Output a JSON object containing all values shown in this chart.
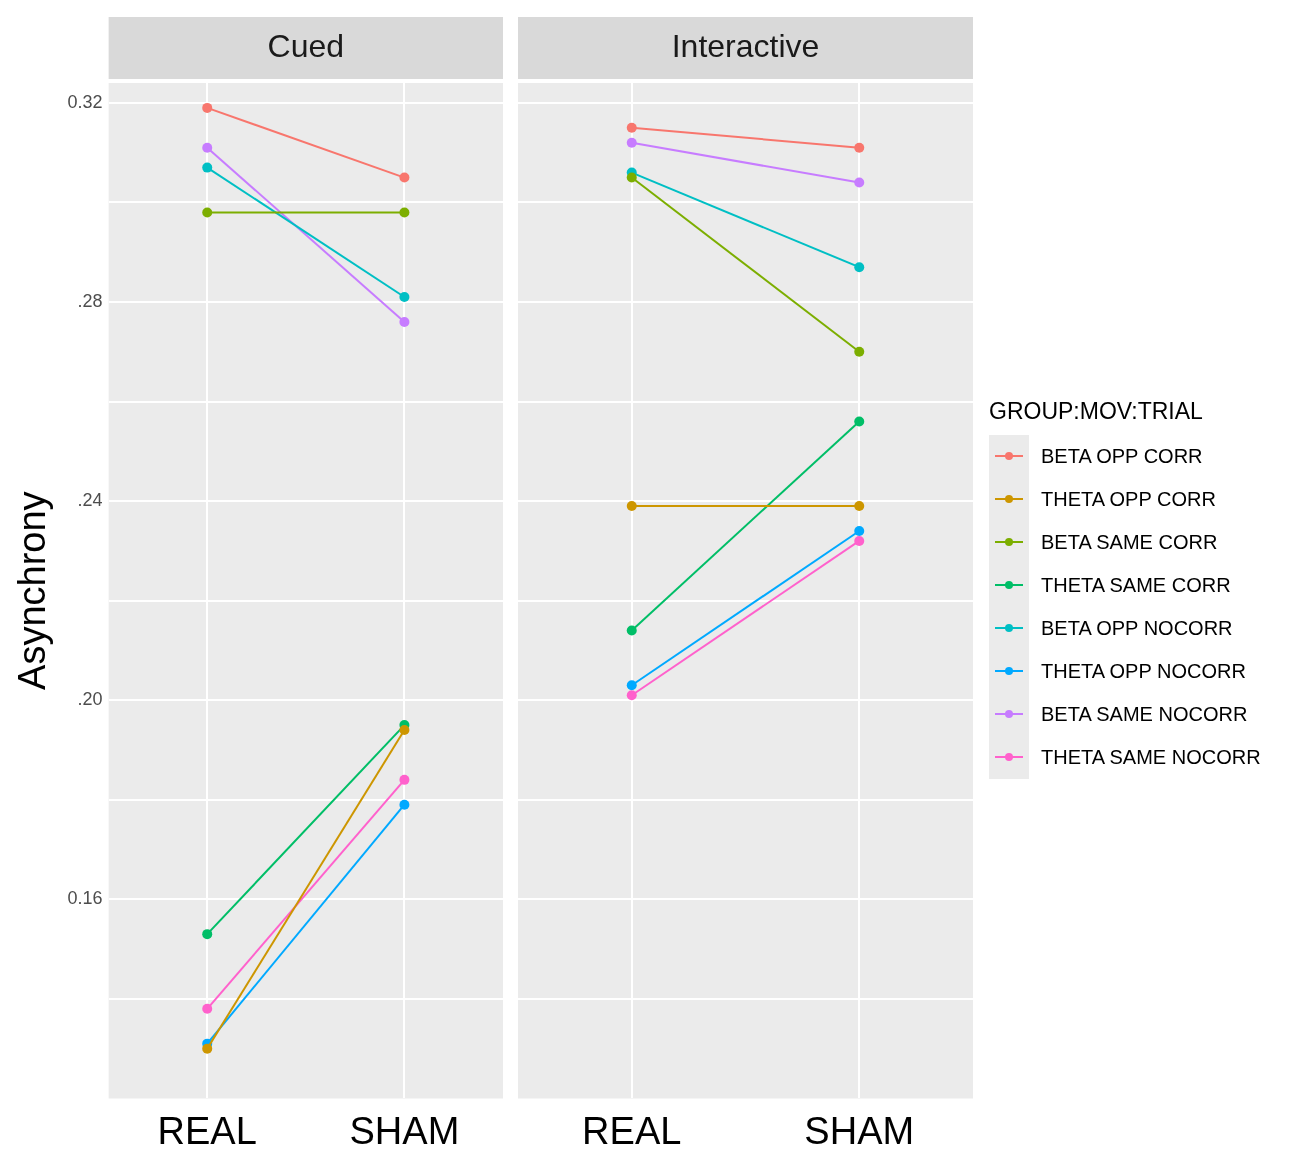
{
  "chart_data": [
    {
      "type": "line",
      "title": "Cued",
      "ylabel": "Asynchrony",
      "categories": [
        "REAL",
        "SHAM"
      ],
      "ylim": [
        0.12,
        0.324
      ],
      "yticks": [
        {
          "value": 0.14,
          "label": null
        },
        {
          "value": 0.16,
          "label": "0.16"
        },
        {
          "value": 0.18,
          "label": null
        },
        {
          "value": 0.2,
          "label": ".20"
        },
        {
          "value": 0.22,
          "label": null
        },
        {
          "value": 0.24,
          "label": ".24"
        },
        {
          "value": 0.26,
          "label": null
        },
        {
          "value": 0.28,
          "label": ".28"
        },
        {
          "value": 0.3,
          "label": null
        },
        {
          "value": 0.32,
          "label": "0.32"
        }
      ],
      "grid": true,
      "marker": "circle",
      "legend": false,
      "series": [
        {
          "color": "#f8766d",
          "values": [
            0.319,
            0.305
          ]
        },
        {
          "color": "#cd9600",
          "values": [
            0.13,
            0.194
          ]
        },
        {
          "color": "#7cae00",
          "values": [
            0.298,
            0.298
          ]
        },
        {
          "color": "#00be67",
          "values": [
            0.153,
            0.195
          ]
        },
        {
          "color": "#00bfc4",
          "values": [
            0.307,
            0.281
          ]
        },
        {
          "color": "#00a9ff",
          "values": [
            0.131,
            0.179
          ]
        },
        {
          "color": "#c77cff",
          "values": [
            0.311,
            0.276
          ]
        },
        {
          "color": "#ff61cc",
          "values": [
            0.138,
            0.184
          ]
        }
      ]
    },
    {
      "type": "line",
      "title": "Interactive",
      "categories": [
        "REAL",
        "SHAM"
      ],
      "ylim": [
        0.12,
        0.324
      ],
      "yticks": [
        0.14,
        0.16,
        0.18,
        0.2,
        0.22,
        0.24,
        0.26,
        0.28,
        0.3,
        0.32
      ],
      "tick_labels": "x",
      "grid": true,
      "marker": "circle",
      "legend": "right",
      "legend_title": "GROUP:MOV:TRIAL",
      "series": [
        {
          "name": "BETA OPP CORR",
          "color": "#f8766d",
          "values": [
            0.315,
            0.311
          ]
        },
        {
          "name": "THETA OPP CORR",
          "color": "#cd9600",
          "values": [
            0.239,
            0.239
          ]
        },
        {
          "name": "BETA SAME CORR",
          "color": "#7cae00",
          "values": [
            0.305,
            0.27
          ]
        },
        {
          "name": "THETA SAME CORR",
          "color": "#00be67",
          "values": [
            0.214,
            0.256
          ]
        },
        {
          "name": "BETA OPP NOCORR",
          "color": "#00bfc4",
          "values": [
            0.306,
            0.287
          ]
        },
        {
          "name": "THETA OPP NOCORR",
          "color": "#00a9ff",
          "values": [
            0.203,
            0.234
          ]
        },
        {
          "name": "BETA SAME NOCORR",
          "color": "#c77cff",
          "values": [
            0.312,
            0.304
          ]
        },
        {
          "name": "THETA SAME NOCORR",
          "color": "#ff61cc",
          "values": [
            0.201,
            0.232
          ]
        }
      ]
    }
  ]
}
